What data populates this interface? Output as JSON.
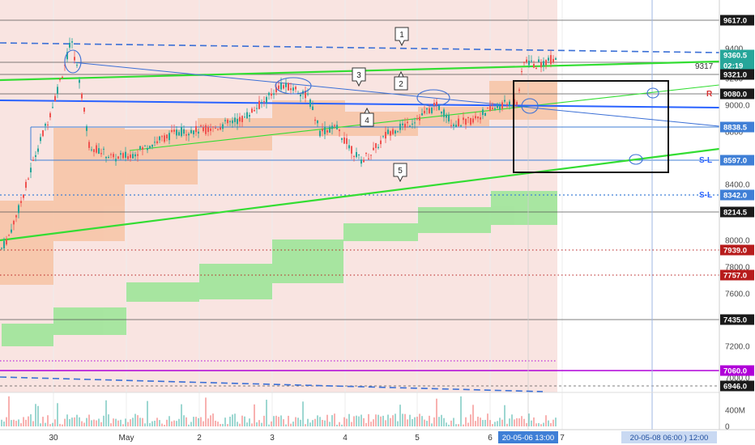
{
  "chart_data": {
    "type": "candlestick",
    "y_axis_ticks": [
      "9400",
      "9200",
      "9000.0",
      "8800",
      "8600",
      "8400.0",
      "8200",
      "8000.0",
      "7800.0",
      "7600.0",
      "7400.0",
      "7200.0",
      "7000.0",
      "400M",
      "0"
    ],
    "x_axis_ticks": [
      "30",
      "May",
      "2",
      "3",
      "4",
      "5",
      "6",
      "7"
    ],
    "x_axis_highlight_labels": [
      {
        "text": "20-05-06  13:00",
        "kind": "crosshair"
      },
      {
        "text": "20-05-08  06:00  )  12:00",
        "kind": "range"
      }
    ],
    "price_labels": [
      {
        "value": "9617.0",
        "color": "#1a1a1a"
      },
      {
        "value": "9360.5",
        "color": "#26a69a"
      },
      {
        "value": "02:19",
        "color": "#26a69a"
      },
      {
        "value": "9321.0",
        "color": "#1a1a1a"
      },
      {
        "value": "9080.0",
        "color": "#1a1a1a"
      },
      {
        "value": "8838.5",
        "color": "#3f7fd6"
      },
      {
        "value": "8597.0",
        "color": "#3f7fd6"
      },
      {
        "value": "8342.0",
        "color": "#3f7fd6"
      },
      {
        "value": "8214.5",
        "color": "#1a1a1a"
      },
      {
        "value": "7939.0",
        "color": "#b71c1c"
      },
      {
        "value": "7757.0",
        "color": "#b71c1c"
      },
      {
        "value": "7435.0",
        "color": "#1a1a1a"
      },
      {
        "value": "7060.0",
        "color": "#b000d8"
      },
      {
        "value": "6946.0",
        "color": "#1a1a1a"
      }
    ],
    "line_annotations": [
      {
        "text": "9317",
        "color": "#333333"
      },
      {
        "text": "R",
        "color": "#d32f2f"
      },
      {
        "text": "S-L",
        "color": "#2962ff"
      },
      {
        "text": "S-L",
        "color": "#2962ff"
      }
    ],
    "callouts": [
      "1",
      "2",
      "3",
      "4",
      "5"
    ],
    "colors": {
      "up_candle": "#26a69a",
      "down_candle": "#ef5350",
      "trendline_green": "#33dd33",
      "trendline_blue": "#3a6fd6",
      "zone_orange": "#f7c4a5",
      "zone_green": "#9fe69a",
      "background_zone": "#f9e4e1"
    }
  }
}
